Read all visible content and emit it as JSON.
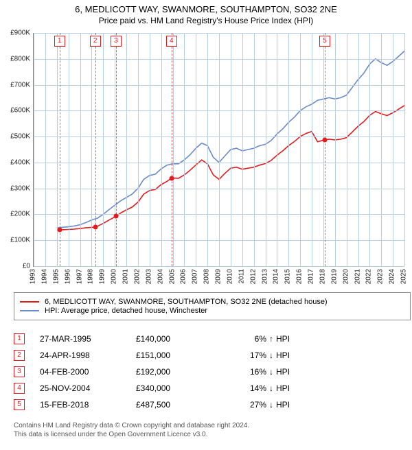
{
  "title_line1": "6, MEDLICOTT WAY, SWANMORE, SOUTHAMPTON, SO32 2NE",
  "title_line2": "Price paid vs. HM Land Registry's House Price Index (HPI)",
  "legend": {
    "series1_label": "6, MEDLICOTT WAY, SWANMORE, SOUTHAMPTON, SO32 2NE (detached house)",
    "series1_color": "#e41a1c",
    "series2_label": "HPI: Average price, detached house, Winchester",
    "series2_color": "#6a8bc9"
  },
  "chart": {
    "type": "line",
    "background_color": "#ffffff",
    "grid_color": "#b7cde3",
    "x_min": 1993,
    "x_max": 2025,
    "y_min": 0,
    "y_max": 900000,
    "x_ticks": [
      1993,
      1994,
      1995,
      1996,
      1997,
      1998,
      1999,
      2000,
      2001,
      2002,
      2003,
      2004,
      2005,
      2006,
      2007,
      2008,
      2009,
      2010,
      2011,
      2012,
      2013,
      2014,
      2015,
      2016,
      2017,
      2018,
      2019,
      2020,
      2021,
      2022,
      2023,
      2024,
      2025
    ],
    "y_ticks": [
      0,
      100000,
      200000,
      300000,
      400000,
      500000,
      600000,
      700000,
      800000,
      900000
    ],
    "y_tick_labels": [
      "£0",
      "£100K",
      "£200K",
      "£300K",
      "£400K",
      "£500K",
      "£600K",
      "£700K",
      "£800K",
      "£900K"
    ],
    "hpi_series": [
      [
        1995.0,
        148000
      ],
      [
        1995.5,
        150000
      ],
      [
        1996.0,
        152000
      ],
      [
        1996.5,
        155000
      ],
      [
        1997.0,
        160000
      ],
      [
        1997.5,
        168000
      ],
      [
        1998.0,
        178000
      ],
      [
        1998.5,
        185000
      ],
      [
        1999.0,
        200000
      ],
      [
        1999.5,
        218000
      ],
      [
        2000.0,
        235000
      ],
      [
        2000.5,
        252000
      ],
      [
        2001.0,
        265000
      ],
      [
        2001.5,
        278000
      ],
      [
        2002.0,
        300000
      ],
      [
        2002.5,
        335000
      ],
      [
        2003.0,
        350000
      ],
      [
        2003.5,
        355000
      ],
      [
        2004.0,
        375000
      ],
      [
        2004.5,
        390000
      ],
      [
        2005.0,
        395000
      ],
      [
        2005.5,
        395000
      ],
      [
        2006.0,
        410000
      ],
      [
        2006.5,
        430000
      ],
      [
        2007.0,
        455000
      ],
      [
        2007.5,
        475000
      ],
      [
        2008.0,
        465000
      ],
      [
        2008.5,
        420000
      ],
      [
        2009.0,
        400000
      ],
      [
        2009.5,
        425000
      ],
      [
        2010.0,
        450000
      ],
      [
        2010.5,
        455000
      ],
      [
        2011.0,
        445000
      ],
      [
        2011.5,
        450000
      ],
      [
        2012.0,
        455000
      ],
      [
        2012.5,
        465000
      ],
      [
        2013.0,
        470000
      ],
      [
        2013.5,
        485000
      ],
      [
        2014.0,
        510000
      ],
      [
        2014.5,
        530000
      ],
      [
        2015.0,
        555000
      ],
      [
        2015.5,
        575000
      ],
      [
        2016.0,
        600000
      ],
      [
        2016.5,
        615000
      ],
      [
        2017.0,
        625000
      ],
      [
        2017.5,
        640000
      ],
      [
        2018.0,
        645000
      ],
      [
        2018.5,
        650000
      ],
      [
        2019.0,
        645000
      ],
      [
        2019.5,
        650000
      ],
      [
        2020.0,
        660000
      ],
      [
        2020.5,
        690000
      ],
      [
        2021.0,
        720000
      ],
      [
        2021.5,
        745000
      ],
      [
        2022.0,
        780000
      ],
      [
        2022.5,
        800000
      ],
      [
        2023.0,
        785000
      ],
      [
        2023.5,
        775000
      ],
      [
        2024.0,
        790000
      ],
      [
        2024.5,
        810000
      ],
      [
        2025.0,
        830000
      ]
    ],
    "property_series": [
      [
        1995.23,
        140000
      ],
      [
        1995.5,
        140500
      ],
      [
        1996.0,
        141500
      ],
      [
        1996.5,
        143000
      ],
      [
        1997.0,
        145000
      ],
      [
        1997.5,
        148000
      ],
      [
        1998.31,
        151000
      ],
      [
        1998.5,
        154000
      ],
      [
        1999.0,
        165000
      ],
      [
        1999.5,
        178000
      ],
      [
        2000.1,
        192000
      ],
      [
        2000.5,
        205000
      ],
      [
        2001.0,
        217000
      ],
      [
        2001.5,
        228000
      ],
      [
        2002.0,
        247000
      ],
      [
        2002.5,
        278000
      ],
      [
        2003.0,
        292000
      ],
      [
        2003.5,
        296000
      ],
      [
        2004.0,
        315000
      ],
      [
        2004.5,
        327000
      ],
      [
        2004.9,
        340000
      ],
      [
        2005.5,
        339000
      ],
      [
        2006.0,
        352000
      ],
      [
        2006.5,
        370000
      ],
      [
        2007.0,
        391000
      ],
      [
        2007.5,
        410000
      ],
      [
        2008.0,
        395000
      ],
      [
        2008.5,
        352000
      ],
      [
        2009.0,
        335000
      ],
      [
        2009.5,
        358000
      ],
      [
        2010.0,
        378000
      ],
      [
        2010.5,
        382000
      ],
      [
        2011.0,
        374000
      ],
      [
        2011.5,
        378000
      ],
      [
        2012.0,
        382000
      ],
      [
        2012.5,
        390000
      ],
      [
        2013.0,
        396000
      ],
      [
        2013.5,
        408000
      ],
      [
        2014.0,
        428000
      ],
      [
        2014.5,
        445000
      ],
      [
        2015.0,
        465000
      ],
      [
        2015.5,
        481000
      ],
      [
        2016.0,
        500000
      ],
      [
        2016.5,
        512000
      ],
      [
        2017.0,
        520000
      ],
      [
        2017.5,
        480000
      ],
      [
        2018.12,
        487500
      ],
      [
        2018.5,
        490000
      ],
      [
        2019.0,
        487000
      ],
      [
        2019.5,
        490000
      ],
      [
        2020.0,
        496000
      ],
      [
        2020.5,
        518000
      ],
      [
        2021.0,
        540000
      ],
      [
        2021.5,
        558000
      ],
      [
        2022.0,
        582000
      ],
      [
        2022.5,
        597000
      ],
      [
        2023.0,
        588000
      ],
      [
        2023.5,
        581000
      ],
      [
        2024.0,
        592000
      ],
      [
        2024.5,
        606000
      ],
      [
        2025.0,
        620000
      ]
    ],
    "sales_markers": [
      {
        "n": 1,
        "x": 1995.23,
        "y": 140000
      },
      {
        "n": 2,
        "x": 1998.31,
        "y": 151000
      },
      {
        "n": 3,
        "x": 2000.1,
        "y": 192000
      },
      {
        "n": 4,
        "x": 2004.9,
        "y": 340000
      },
      {
        "n": 5,
        "x": 2018.12,
        "y": 487500
      }
    ],
    "line_width": 1.6
  },
  "sales_table": {
    "hpi_label": "HPI",
    "rows": [
      {
        "n": "1",
        "date": "27-MAR-1995",
        "price": "£140,000",
        "pct": "6%",
        "dir": "↑"
      },
      {
        "n": "2",
        "date": "24-APR-1998",
        "price": "£151,000",
        "pct": "17%",
        "dir": "↓"
      },
      {
        "n": "3",
        "date": "04-FEB-2000",
        "price": "£192,000",
        "pct": "16%",
        "dir": "↓"
      },
      {
        "n": "4",
        "date": "25-NOV-2004",
        "price": "£340,000",
        "pct": "14%",
        "dir": "↓"
      },
      {
        "n": "5",
        "date": "15-FEB-2018",
        "price": "£487,500",
        "pct": "27%",
        "dir": "↓"
      }
    ]
  },
  "footer": {
    "line1": "Contains HM Land Registry data © Crown copyright and database right 2024.",
    "line2": "This data is licensed under the Open Government Licence v3.0."
  }
}
